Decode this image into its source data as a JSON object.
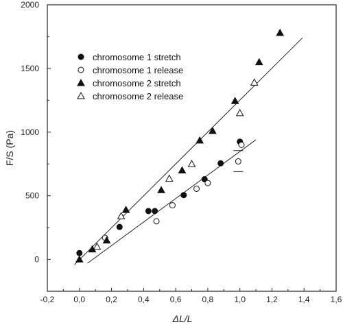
{
  "chart_data": {
    "type": "scatter",
    "title": "",
    "xlabel": "ΔL/L",
    "ylabel": "F/S (Pa)",
    "xlim": [
      -0.2,
      1.6
    ],
    "ylim": [
      -250,
      2000
    ],
    "xticks": [
      -0.2,
      0.0,
      0.2,
      0.4,
      0.6,
      0.8,
      1.0,
      1.2,
      1.4,
      1.6
    ],
    "xtick_labels": [
      "-0,2",
      "0,0",
      "0,2",
      "0,4",
      "0,6",
      "0,8",
      "1,0",
      "1,2",
      "1,4",
      "1,6"
    ],
    "yticks": [
      0,
      500,
      1000,
      1500,
      2000
    ],
    "ytick_labels": [
      "0",
      "500",
      "1000",
      "1500",
      "2000"
    ],
    "grid": false,
    "legend_position": "top-left",
    "series": [
      {
        "name": "chromosome 1 stretch",
        "marker": "filled-circle",
        "points": [
          [
            0.0,
            50
          ],
          [
            0.25,
            255
          ],
          [
            0.43,
            380
          ],
          [
            0.47,
            380
          ],
          [
            0.65,
            505
          ],
          [
            0.78,
            630
          ],
          [
            0.88,
            755
          ],
          [
            1.0,
            925
          ]
        ]
      },
      {
        "name": "chromosome 1 release",
        "marker": "open-circle",
        "points": [
          [
            0.16,
            170
          ],
          [
            0.48,
            300
          ],
          [
            0.58,
            425
          ],
          [
            0.73,
            555
          ],
          [
            0.8,
            600
          ],
          [
            0.99,
            770
          ],
          [
            1.01,
            900
          ]
        ]
      },
      {
        "name": "chromosome 2 stretch",
        "marker": "filled-triangle",
        "points": [
          [
            0.0,
            0
          ],
          [
            0.08,
            80
          ],
          [
            0.17,
            150
          ],
          [
            0.29,
            390
          ],
          [
            0.51,
            545
          ],
          [
            0.64,
            700
          ],
          [
            0.75,
            935
          ],
          [
            0.83,
            1010
          ],
          [
            0.97,
            1245
          ],
          [
            1.12,
            1550
          ],
          [
            1.25,
            1780
          ]
        ]
      },
      {
        "name": "chromosome 2 release",
        "marker": "open-triangle",
        "points": [
          [
            0.11,
            100
          ],
          [
            0.26,
            340
          ],
          [
            0.56,
            635
          ],
          [
            0.7,
            750
          ],
          [
            1.0,
            1150
          ],
          [
            1.09,
            1390
          ]
        ]
      }
    ],
    "fit_lines": [
      {
        "x": [
          -0.03,
          1.39
        ],
        "y": [
          -40,
          1740
        ]
      },
      {
        "x": [
          0.05,
          1.1
        ],
        "y": [
          -30,
          940
        ]
      }
    ],
    "error_bars": [
      {
        "x": 0.99,
        "y_low": 690,
        "y_high": 855
      }
    ]
  }
}
